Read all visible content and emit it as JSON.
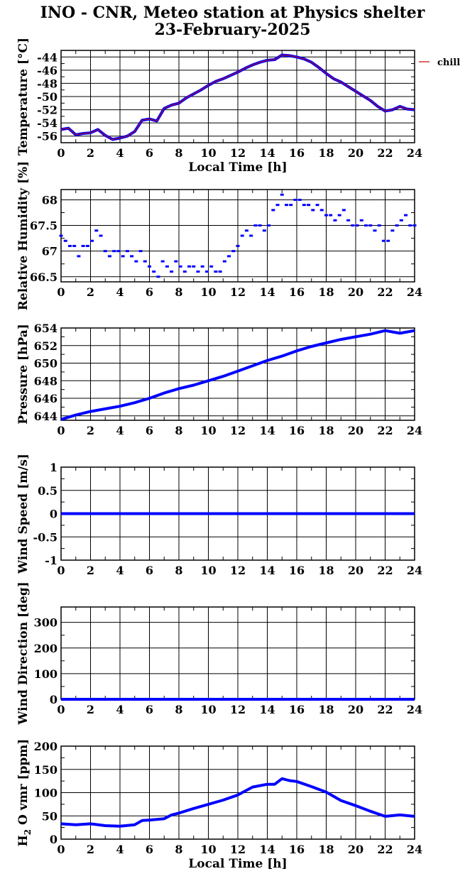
{
  "title_line1": "INO - CNR, Meteo station at Physics shelter",
  "title_line2": "23-February-2025",
  "colors": {
    "series": "#0000ff",
    "chill": "#cc0000",
    "axis": "#000000",
    "grid": "#000000"
  },
  "chart_data": [
    {
      "type": "line",
      "ylabel": "Temperature [°C]",
      "xlabel": "Local Time [h]",
      "xlim": [
        0,
        24
      ],
      "ylim": [
        -57,
        -43
      ],
      "xticks": [
        0,
        2,
        4,
        6,
        8,
        10,
        12,
        14,
        16,
        18,
        20,
        22,
        24
      ],
      "yticks": [
        -56,
        -54,
        -52,
        -50,
        -48,
        -46,
        -44
      ],
      "ytick_labels": [
        "-56",
        "-54",
        "-52",
        "-50",
        "-48",
        "-46",
        "-44"
      ],
      "grid": true,
      "legend": "right",
      "series": [
        {
          "x": [
            0,
            0.5,
            1,
            1.5,
            2,
            2.5,
            3,
            3.5,
            4,
            4.5,
            5,
            5.5,
            6,
            6.5,
            7,
            7.5,
            8,
            8.5,
            9,
            9.5,
            10,
            10.5,
            11,
            11.5,
            12,
            12.5,
            13,
            13.5,
            14,
            14.5,
            15,
            15.5,
            16,
            16.5,
            17,
            17.5,
            18,
            18.5,
            19,
            19.5,
            20,
            20.5,
            21,
            21.5,
            22,
            22.5,
            23,
            23.5,
            24
          ],
          "values": [
            -55,
            -54.8,
            -55.8,
            -55.6,
            -55.5,
            -55,
            -55.9,
            -56.5,
            -56.3,
            -56,
            -55.3,
            -53.6,
            -53.4,
            -53.7,
            -51.8,
            -51.3,
            -51,
            -50.2,
            -49.6,
            -49,
            -48.3,
            -47.7,
            -47.3,
            -46.8,
            -46.3,
            -45.7,
            -45.2,
            -44.8,
            -44.5,
            -44.4,
            -43.7,
            -43.8,
            -44,
            -44.3,
            -44.8,
            -45.6,
            -46.5,
            -47.3,
            -47.8,
            -48.5,
            -49.2,
            -49.9,
            -50.6,
            -51.5,
            -52.2,
            -52,
            -51.5,
            -51.9,
            -52
          ]
        },
        {
          "name": "chill",
          "x": [
            0,
            0.5,
            1,
            1.5,
            2,
            2.5,
            3,
            3.5,
            4,
            4.5,
            5,
            5.5,
            6,
            6.5,
            7,
            7.5,
            8,
            8.5,
            9,
            9.5,
            10,
            10.5,
            11,
            11.5,
            12,
            12.5,
            13,
            13.5,
            14,
            14.5,
            15,
            15.5,
            16,
            16.5,
            17,
            17.5,
            18,
            18.5,
            19,
            19.5,
            20,
            20.5,
            21,
            21.5,
            22,
            22.5,
            23,
            23.5,
            24
          ],
          "values": [
            -55,
            -54.8,
            -55.8,
            -55.6,
            -55.5,
            -55,
            -55.9,
            -56.5,
            -56.3,
            -56,
            -55.3,
            -53.6,
            -53.4,
            -53.7,
            -51.8,
            -51.3,
            -51,
            -50.2,
            -49.6,
            -49,
            -48.3,
            -47.7,
            -47.3,
            -46.8,
            -46.3,
            -45.7,
            -45.2,
            -44.8,
            -44.5,
            -44.4,
            -43.7,
            -43.8,
            -44,
            -44.3,
            -44.8,
            -45.6,
            -46.5,
            -47.3,
            -47.8,
            -48.5,
            -49.2,
            -49.9,
            -50.6,
            -51.5,
            -52.2,
            -52,
            -51.5,
            -51.9,
            -52
          ]
        }
      ]
    },
    {
      "type": "scatter",
      "ylabel": "Relative Humidity [%]",
      "xlim": [
        0,
        24
      ],
      "ylim": [
        66.4,
        68.2
      ],
      "xticks": [
        0,
        2,
        4,
        6,
        8,
        10,
        12,
        14,
        16,
        18,
        20,
        22,
        24
      ],
      "yticks": [
        66.5,
        67,
        67.5,
        68
      ],
      "ytick_labels": [
        "66.5",
        "67",
        "67.5",
        "68"
      ],
      "grid": true,
      "series": [
        {
          "x": [
            0,
            0.3,
            0.6,
            0.9,
            1.2,
            1.5,
            1.8,
            2.1,
            2.4,
            2.7,
            3,
            3.3,
            3.6,
            3.9,
            4.2,
            4.5,
            4.8,
            5.1,
            5.4,
            5.7,
            6,
            6.3,
            6.6,
            6.9,
            7.2,
            7.5,
            7.8,
            8.1,
            8.4,
            8.7,
            9,
            9.3,
            9.6,
            9.9,
            10.2,
            10.5,
            10.8,
            11.1,
            11.4,
            11.7,
            12,
            12.3,
            12.6,
            12.9,
            13.2,
            13.5,
            13.8,
            14.1,
            14.4,
            14.7,
            15,
            15.3,
            15.6,
            15.9,
            16.2,
            16.5,
            16.8,
            17.1,
            17.4,
            17.7,
            18,
            18.3,
            18.6,
            18.9,
            19.2,
            19.5,
            19.8,
            20.1,
            20.4,
            20.7,
            21,
            21.3,
            21.6,
            21.9,
            22.2,
            22.5,
            22.8,
            23.1,
            23.4,
            23.7,
            24
          ],
          "values": [
            67.3,
            67.2,
            67.1,
            67.1,
            66.9,
            67.1,
            67.1,
            67.2,
            67.4,
            67.3,
            67,
            66.9,
            67,
            67,
            66.9,
            67,
            66.9,
            66.8,
            67,
            66.8,
            66.7,
            66.6,
            66.5,
            66.8,
            66.7,
            66.6,
            66.8,
            66.7,
            66.6,
            66.7,
            66.7,
            66.6,
            66.7,
            66.6,
            66.7,
            66.6,
            66.6,
            66.8,
            66.9,
            67,
            67.1,
            67.3,
            67.4,
            67.3,
            67.5,
            67.5,
            67.4,
            67.5,
            67.8,
            67.9,
            68.1,
            67.9,
            67.9,
            68,
            68,
            67.9,
            67.9,
            67.8,
            67.9,
            67.8,
            67.7,
            67.7,
            67.6,
            67.7,
            67.8,
            67.6,
            67.5,
            67.5,
            67.6,
            67.5,
            67.5,
            67.4,
            67.5,
            67.2,
            67.2,
            67.4,
            67.5,
            67.6,
            67.7,
            67.5,
            67.5
          ]
        }
      ]
    },
    {
      "type": "line",
      "ylabel": "Pressure [hPa]",
      "xlim": [
        0,
        24
      ],
      "ylim": [
        643.5,
        654
      ],
      "xticks": [
        0,
        2,
        4,
        6,
        8,
        10,
        12,
        14,
        16,
        18,
        20,
        22,
        24
      ],
      "yticks": [
        644,
        646,
        648,
        650,
        652,
        654
      ],
      "ytick_labels": [
        "644",
        "646",
        "648",
        "650",
        "652",
        "654"
      ],
      "grid": true,
      "series": [
        {
          "x": [
            0,
            1,
            2,
            3,
            4,
            5,
            6,
            7,
            8,
            9,
            10,
            11,
            12,
            13,
            14,
            15,
            16,
            17,
            18,
            19,
            20,
            21,
            22,
            23,
            24
          ],
          "values": [
            643.6,
            644.1,
            644.5,
            644.8,
            645.1,
            645.5,
            646,
            646.6,
            647.1,
            647.5,
            648,
            648.5,
            649.1,
            649.7,
            650.3,
            650.8,
            651.4,
            651.9,
            652.3,
            652.7,
            653,
            653.3,
            653.7,
            653.4,
            653.7
          ]
        }
      ]
    },
    {
      "type": "line",
      "ylabel": "Wind Speed [m/s]",
      "xlim": [
        0,
        24
      ],
      "ylim": [
        -1,
        1
      ],
      "xticks": [
        0,
        2,
        4,
        6,
        8,
        10,
        12,
        14,
        16,
        18,
        20,
        22,
        24
      ],
      "yticks": [
        -1,
        -0.5,
        0,
        0.5,
        1
      ],
      "ytick_labels": [
        "-1",
        "-0.5",
        "0",
        "0.5",
        "1"
      ],
      "grid": true,
      "series": [
        {
          "x": [
            0,
            24
          ],
          "values": [
            0,
            0
          ]
        }
      ]
    },
    {
      "type": "line",
      "ylabel": "Wind Direction [deg]",
      "xlim": [
        0,
        24
      ],
      "ylim": [
        0,
        360
      ],
      "xticks": [
        0,
        2,
        4,
        6,
        8,
        10,
        12,
        14,
        16,
        18,
        20,
        22,
        24
      ],
      "yticks": [
        0,
        100,
        200,
        300
      ],
      "ytick_labels": [
        "0",
        "100",
        "200",
        "300"
      ],
      "grid": true,
      "series": [
        {
          "x": [
            0,
            24
          ],
          "values": [
            0,
            0
          ]
        }
      ]
    },
    {
      "type": "line",
      "ylabel": "H2O vmr [ppm]",
      "xlabel": "Local Time [h]",
      "xlim": [
        0,
        24
      ],
      "ylim": [
        0,
        200
      ],
      "xticks": [
        0,
        2,
        4,
        6,
        8,
        10,
        12,
        14,
        16,
        18,
        20,
        22,
        24
      ],
      "yticks": [
        0,
        50,
        100,
        150,
        200
      ],
      "ytick_labels": [
        "0",
        "50",
        "100",
        "150",
        "200"
      ],
      "grid": true,
      "series": [
        {
          "x": [
            0,
            1,
            2,
            3,
            4,
            5,
            5.5,
            6,
            7,
            7.5,
            8,
            9,
            10,
            11,
            12,
            13,
            14,
            14.5,
            15,
            15.5,
            16,
            17,
            18,
            19,
            20,
            21,
            22,
            23,
            24
          ],
          "values": [
            33,
            31,
            33,
            29,
            28,
            31,
            40,
            41,
            44,
            52,
            56,
            66,
            75,
            84,
            95,
            112,
            118,
            118,
            130,
            126,
            124,
            113,
            101,
            83,
            72,
            60,
            49,
            52,
            49
          ]
        }
      ]
    }
  ]
}
